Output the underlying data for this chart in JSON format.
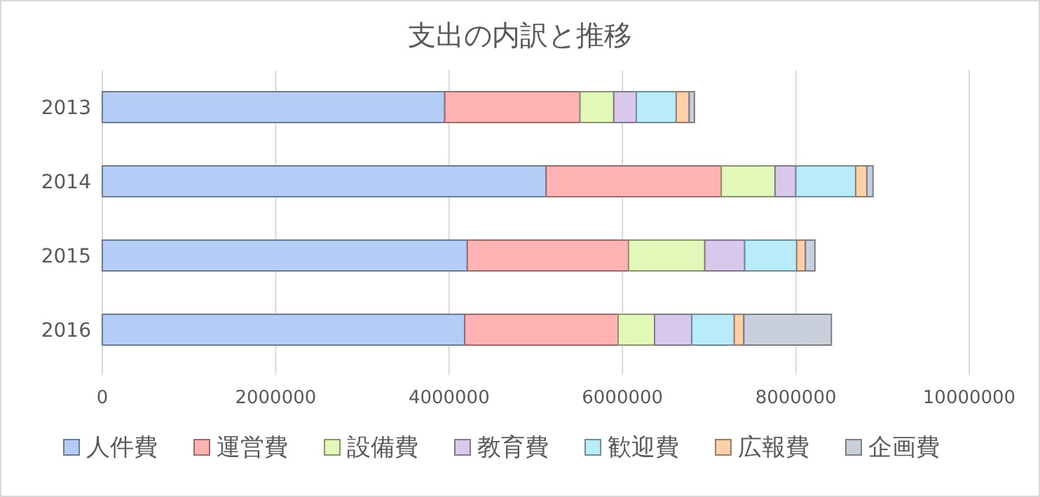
{
  "chart_data": {
    "type": "bar",
    "title": "支出の内訳と推移",
    "orientation": "horizontal",
    "stacked": true,
    "categories": [
      "2013",
      "2014",
      "2015",
      "2016"
    ],
    "series": [
      {
        "name": "人件費",
        "color": "#b4cdf7",
        "values": [
          3950000,
          5120000,
          4210000,
          4180000
        ]
      },
      {
        "name": "運営費",
        "color": "#ffb3b3",
        "values": [
          1560000,
          2020000,
          1860000,
          1770000
        ]
      },
      {
        "name": "設備費",
        "color": "#e2f8b8",
        "values": [
          390000,
          620000,
          880000,
          420000
        ]
      },
      {
        "name": "教育費",
        "color": "#d8c8ec",
        "values": [
          260000,
          240000,
          460000,
          430000
        ]
      },
      {
        "name": "歓迎費",
        "color": "#b8ecfa",
        "values": [
          460000,
          690000,
          600000,
          490000
        ]
      },
      {
        "name": "広報費",
        "color": "#fdd0a8",
        "values": [
          150000,
          130000,
          100000,
          110000
        ]
      },
      {
        "name": "企画費",
        "color": "#c9d0dc",
        "values": [
          60000,
          70000,
          110000,
          1010000
        ]
      }
    ],
    "xlim": [
      0,
      10000000
    ],
    "xticks": [
      0,
      2000000,
      4000000,
      6000000,
      8000000,
      10000000
    ],
    "grid": "x",
    "legend": "bottom"
  }
}
